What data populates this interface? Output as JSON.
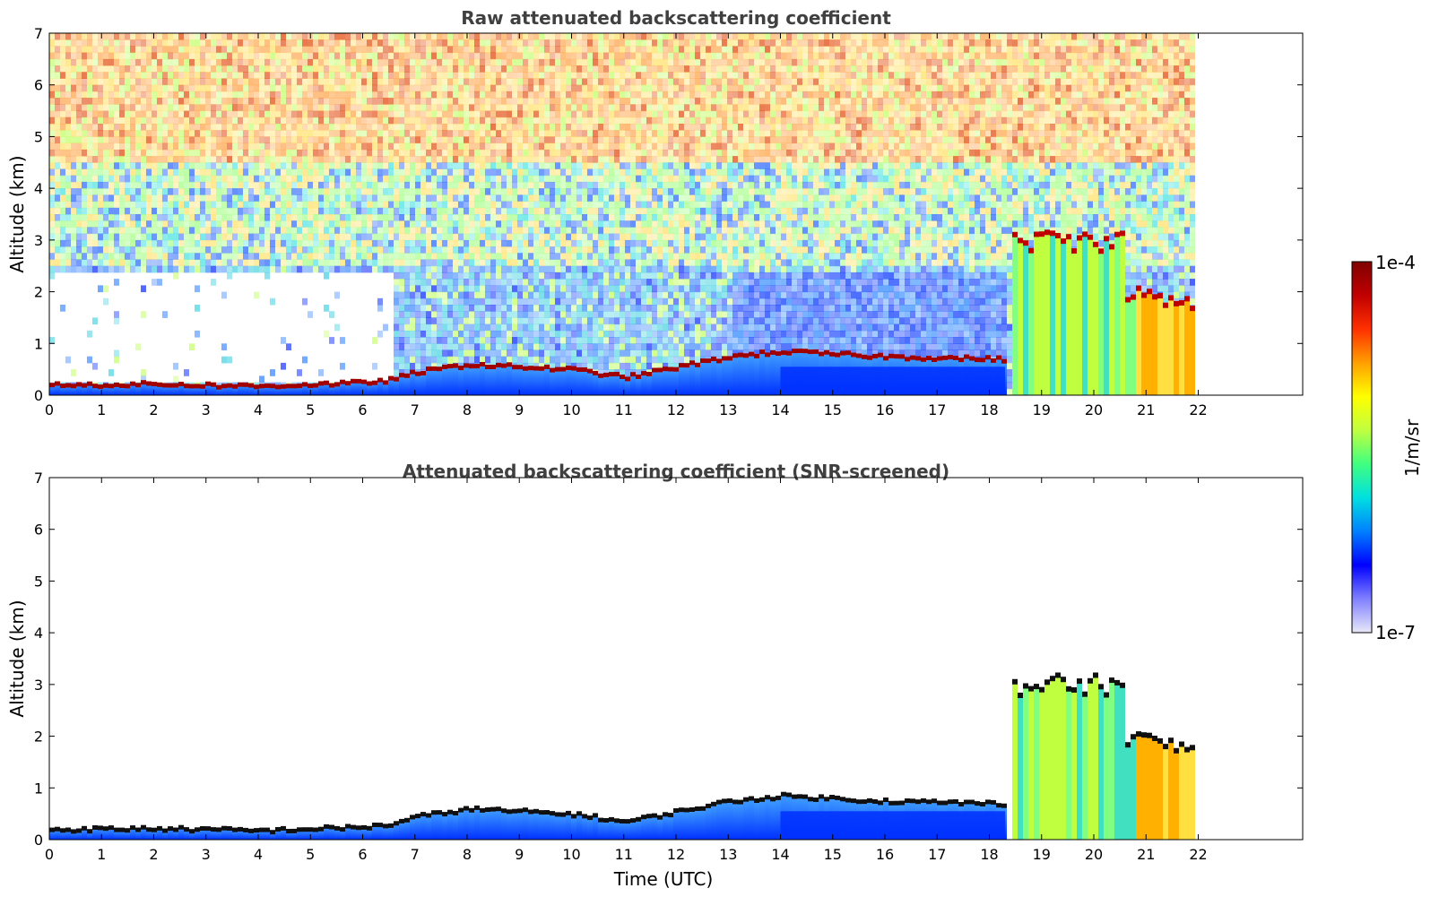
{
  "chart_data": [
    {
      "type": "heatmap",
      "title": "Raw attenuated backscattering coefficient",
      "xlabel": "",
      "ylabel": "Altitude (km)",
      "xlim": [
        0,
        24
      ],
      "ylim": [
        0,
        7
      ],
      "xticks": [
        "0",
        "1",
        "2",
        "3",
        "4",
        "5",
        "6",
        "7",
        "8",
        "9",
        "10",
        "11",
        "12",
        "13",
        "14",
        "15",
        "16",
        "17",
        "18",
        "19",
        "20",
        "21",
        "22"
      ],
      "yticks": [
        "0",
        "1",
        "2",
        "3",
        "4",
        "5",
        "6",
        "7"
      ],
      "data_end_time": 22,
      "boundary_layer_top_km": [
        {
          "t": 0,
          "h": 0.2
        },
        {
          "t": 2,
          "h": 0.22
        },
        {
          "t": 4,
          "h": 0.18
        },
        {
          "t": 6,
          "h": 0.25
        },
        {
          "t": 6.5,
          "h": 0.3
        },
        {
          "t": 7,
          "h": 0.45
        },
        {
          "t": 8,
          "h": 0.6
        },
        {
          "t": 9,
          "h": 0.55
        },
        {
          "t": 10,
          "h": 0.5
        },
        {
          "t": 11,
          "h": 0.35
        },
        {
          "t": 12,
          "h": 0.55
        },
        {
          "t": 13,
          "h": 0.75
        },
        {
          "t": 14,
          "h": 0.85
        },
        {
          "t": 16,
          "h": 0.75
        },
        {
          "t": 18.3,
          "h": 0.7
        }
      ],
      "cloud_layers": [
        {
          "t0": 18.3,
          "t1": 20.6,
          "base_km": 2.8,
          "top_km": 3.3
        },
        {
          "t0": 20.6,
          "t1": 22,
          "base_km": 1.6,
          "top_km": 2.3
        }
      ]
    },
    {
      "type": "heatmap",
      "title": "Attenuated backscattering coefficient (SNR-screened)",
      "xlabel": "Time (UTC)",
      "ylabel": "Altitude (km)",
      "xlim": [
        0,
        24
      ],
      "ylim": [
        0,
        7
      ],
      "xticks": [
        "0",
        "1",
        "2",
        "3",
        "4",
        "5",
        "6",
        "7",
        "8",
        "9",
        "10",
        "11",
        "12",
        "13",
        "14",
        "15",
        "16",
        "17",
        "18",
        "19",
        "20",
        "21",
        "22"
      ],
      "yticks": [
        "0",
        "1",
        "2",
        "3",
        "4",
        "5",
        "6",
        "7"
      ],
      "data_end_time": 22
    }
  ],
  "colorbar": {
    "label": "1/m/sr",
    "max_label": "1e-4",
    "min_label": "1e-7",
    "stops": [
      "#e8e8f8",
      "#8080ff",
      "#0000ff",
      "#0080ff",
      "#00e0e0",
      "#40ff80",
      "#c0ff40",
      "#ffff00",
      "#ffa000",
      "#ff3000",
      "#c00000",
      "#800000"
    ]
  }
}
